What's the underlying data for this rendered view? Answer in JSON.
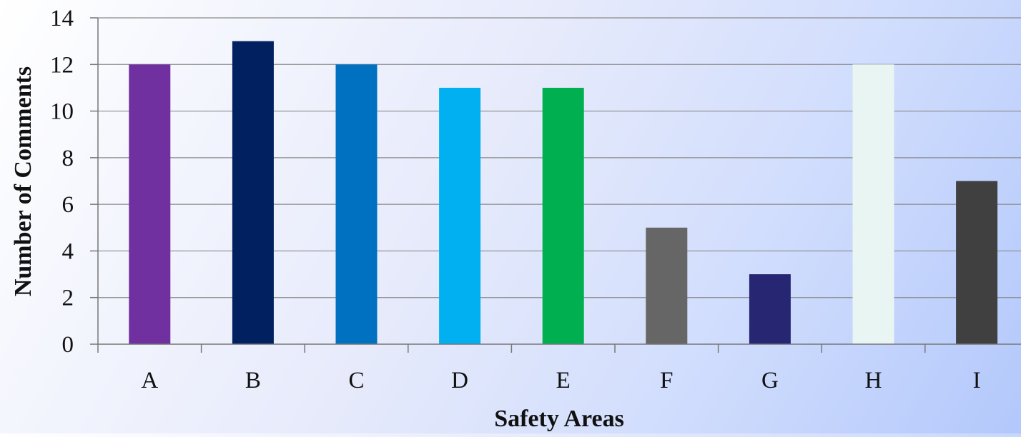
{
  "chart_data": {
    "type": "bar",
    "title": "",
    "xlabel": "Safety Areas",
    "ylabel": "Number of Comments",
    "categories": [
      "A",
      "B",
      "C",
      "D",
      "E",
      "F",
      "G",
      "H",
      "I"
    ],
    "values": [
      12,
      13,
      12,
      11,
      11,
      5,
      3,
      12,
      7
    ],
    "colors": [
      "#7030a0",
      "#002060",
      "#0070c0",
      "#00b0f0",
      "#00b050",
      "#666666",
      "#262673",
      "#e9f5f2",
      "#404040"
    ],
    "ylim": [
      0,
      14
    ],
    "yticks": [
      0,
      2,
      4,
      6,
      8,
      10,
      12,
      14
    ],
    "grid": true,
    "legend": "none"
  }
}
